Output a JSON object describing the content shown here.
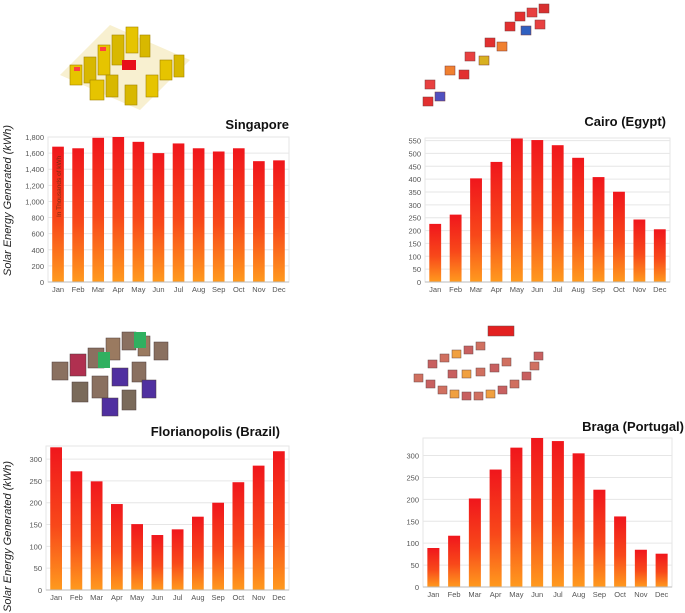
{
  "y_axis_label": "Solar Energy Generated (kWh)",
  "colors": {
    "bar_top": "#f0161c",
    "bar_bottom": "#ff9a1e",
    "grid": "#e6e6e6",
    "axis": "#bbbbbb",
    "tick": "#555555"
  },
  "chart_data": [
    {
      "type": "bar",
      "title": "Singapore",
      "annotation": "In Thousands of kWh",
      "categories": [
        "Jan",
        "Feb",
        "Mar",
        "Apr",
        "May",
        "Jun",
        "Jul",
        "Aug",
        "Sep",
        "Oct",
        "Nov",
        "Dec"
      ],
      "values": [
        1680,
        1660,
        1790,
        1800,
        1740,
        1600,
        1720,
        1660,
        1620,
        1660,
        1500,
        1510
      ],
      "ylim": [
        0,
        1800
      ],
      "yticks": [
        0,
        200,
        400,
        600,
        800,
        "1,000",
        "1,200",
        "1,400",
        "1,600",
        "1,800"
      ],
      "ytick_values": [
        0,
        200,
        400,
        600,
        800,
        1000,
        1200,
        1400,
        1600,
        1800
      ]
    },
    {
      "type": "bar",
      "title": "Cairo (Egypt)",
      "categories": [
        "Jan",
        "Feb",
        "Mar",
        "Apr",
        "May",
        "Jun",
        "Jul",
        "Aug",
        "Sep",
        "Oct",
        "Nov",
        "Dec"
      ],
      "values": [
        226,
        262,
        403,
        467,
        558,
        552,
        532,
        483,
        408,
        351,
        243,
        205
      ],
      "ylim": [
        0,
        560
      ],
      "yticks": [
        0,
        50,
        100,
        150,
        200,
        250,
        300,
        350,
        400,
        450,
        500,
        550
      ],
      "ytick_values": [
        0,
        50,
        100,
        150,
        200,
        250,
        300,
        350,
        400,
        450,
        500,
        550
      ]
    },
    {
      "type": "bar",
      "title": "Florianopolis (Brazil)",
      "categories": [
        "Jan",
        "Feb",
        "Mar",
        "Apr",
        "May",
        "Jun",
        "Jul",
        "Aug",
        "Sep",
        "Oct",
        "Nov",
        "Dec"
      ],
      "values": [
        327,
        272,
        249,
        197,
        151,
        126,
        139,
        168,
        200,
        247,
        285,
        318
      ],
      "ylim": [
        0,
        330
      ],
      "yticks": [
        0,
        50,
        100,
        150,
        200,
        250,
        300
      ],
      "ytick_values": [
        0,
        50,
        100,
        150,
        200,
        250,
        300
      ]
    },
    {
      "type": "bar",
      "title": "Braga (Portugal)",
      "categories": [
        "Jan",
        "Feb",
        "Mar",
        "Apr",
        "May",
        "Jun",
        "Jul",
        "Aug",
        "Sep",
        "Oct",
        "Nov",
        "Dec"
      ],
      "values": [
        89,
        117,
        202,
        268,
        318,
        340,
        333,
        305,
        222,
        161,
        85,
        76
      ],
      "ylim": [
        0,
        340
      ],
      "yticks": [
        0,
        50,
        100,
        150,
        200,
        250,
        300
      ],
      "ytick_values": [
        0,
        50,
        100,
        150,
        200,
        250,
        300
      ]
    }
  ]
}
